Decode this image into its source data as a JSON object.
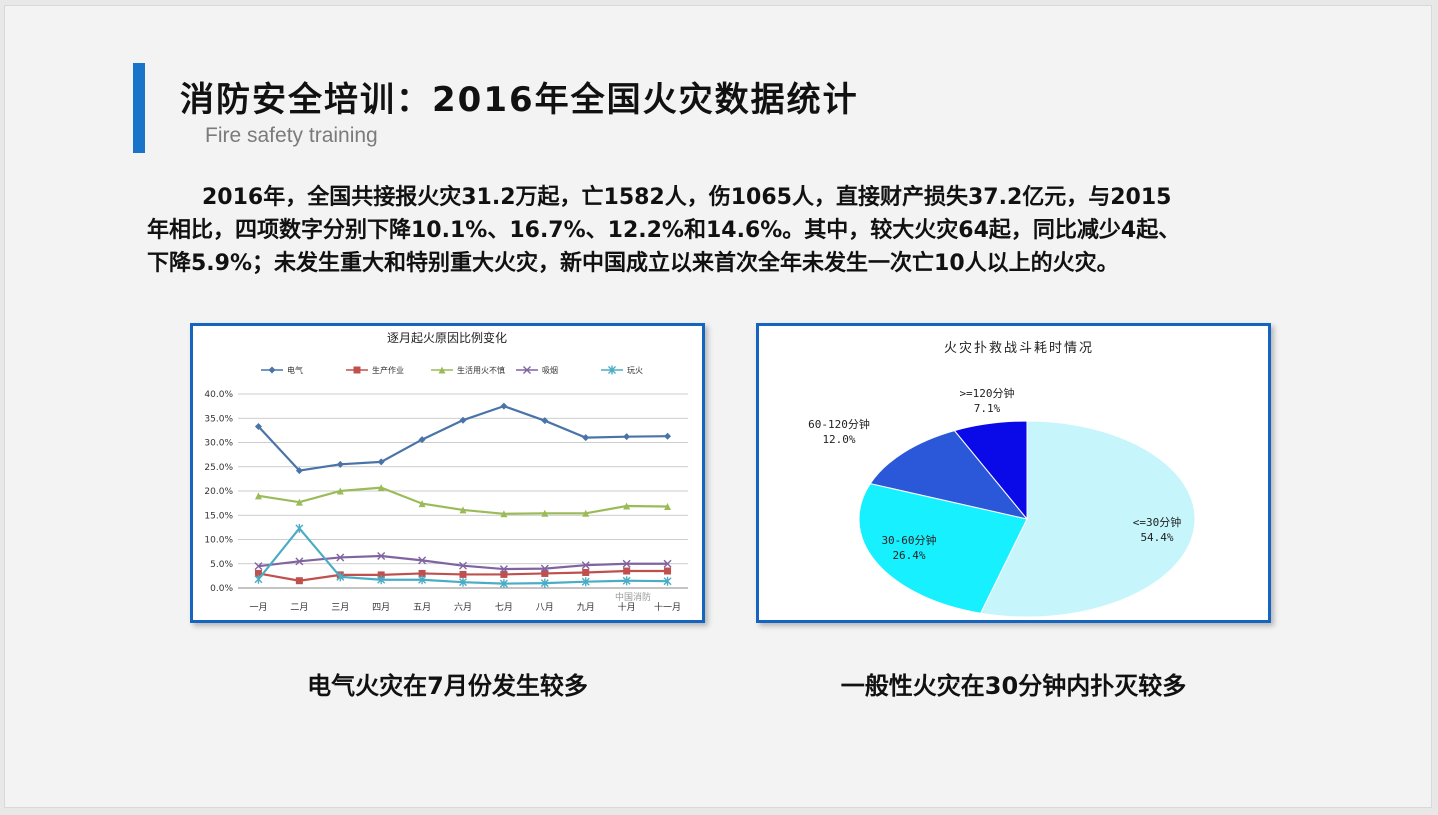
{
  "slide": {
    "title": "消防安全培训：2016年全国火灾数据统计",
    "subtitle": "Fire safety training",
    "paragraph_lines": [
      "2016年，全国共接报火灾31.2万起，亡1582人，伤1065人，直接财产损失37.2亿元，与2015",
      "年相比，四项数字分别下降10.1%、16.7%、12.2%和14.6%。其中，较大火灾64起，同比减少4起、",
      "下降5.9%；未发生重大和特别重大火灾，新中国成立以来首次全年未发生一次亡10人以上的火灾。"
    ],
    "caption_left": "电气火灾在7月份发生较多",
    "caption_right": "一般性火灾在30分钟内扑灭较多",
    "chart_watermark": "中国消防",
    "accent_color": "#1873c9",
    "panel_border_color": "#1565c0"
  },
  "chart_data": [
    {
      "type": "line",
      "title": "逐月起火原因比例变化",
      "categories": [
        "一月",
        "二月",
        "三月",
        "四月",
        "五月",
        "六月",
        "七月",
        "八月",
        "九月",
        "十月",
        "十一月"
      ],
      "ylim": [
        0,
        40
      ],
      "yticks": [
        "0.0%",
        "5.0%",
        "10.0%",
        "15.0%",
        "20.0%",
        "25.0%",
        "30.0%",
        "35.0%",
        "40.0%"
      ],
      "legend_position": "top",
      "grid": true,
      "series": [
        {
          "name": "电气",
          "color": "#4a74a8",
          "marker": "diamond",
          "values": [
            33.3,
            24.2,
            25.5,
            26.0,
            30.6,
            34.6,
            37.5,
            34.5,
            31.0,
            31.2,
            31.3
          ]
        },
        {
          "name": "生产作业",
          "color": "#c0504d",
          "marker": "square",
          "values": [
            3.0,
            1.5,
            2.7,
            2.7,
            3.0,
            2.8,
            2.8,
            3.0,
            3.2,
            3.5,
            3.5
          ]
        },
        {
          "name": "生活用火不慎",
          "color": "#9bbb59",
          "marker": "triangle",
          "values": [
            19.0,
            17.7,
            20.0,
            20.7,
            17.4,
            16.1,
            15.3,
            15.4,
            15.4,
            16.9,
            16.8
          ]
        },
        {
          "name": "吸烟",
          "color": "#8064a2",
          "marker": "x",
          "values": [
            4.5,
            5.5,
            6.3,
            6.6,
            5.7,
            4.6,
            3.9,
            4.0,
            4.7,
            5.0,
            5.0
          ]
        },
        {
          "name": "玩火",
          "color": "#4bacc6",
          "marker": "star",
          "values": [
            1.8,
            12.3,
            2.3,
            1.7,
            1.7,
            1.2,
            0.9,
            1.0,
            1.3,
            1.5,
            1.4
          ]
        }
      ]
    },
    {
      "type": "pie",
      "title": "火灾扑救战斗耗时情况",
      "slices": [
        {
          "label": "<=30分钟",
          "value": 54.4,
          "display": "54.4%",
          "color": "#c6f5fb"
        },
        {
          "label": "30-60分钟",
          "value": 26.4,
          "display": "26.4%",
          "color": "#16f0ff"
        },
        {
          "label": "60-120分钟",
          "value": 12.0,
          "display": "12.0%",
          "color": "#2a58d8"
        },
        {
          "label": ">=120分钟",
          "value": 7.1,
          "display": "7.1%",
          "color": "#0a0ae8"
        }
      ]
    }
  ]
}
